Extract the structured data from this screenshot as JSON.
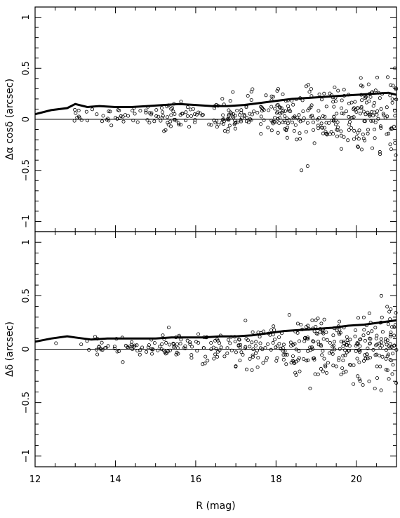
{
  "chart_data": [
    {
      "type": "scatter",
      "panel": "top",
      "xlabel": "R (mag)",
      "ylabel": "Δα cosδ  (arcsec)",
      "xlim": [
        12,
        21
      ],
      "ylim": [
        -1.1,
        1.1
      ],
      "yticks": [
        -1,
        -0.5,
        0,
        0.5,
        1
      ],
      "ytick_labels": [
        "−1",
        "−0.5",
        "0",
        "0.5",
        "1"
      ],
      "zero_line": 0,
      "rms_curve": {
        "x": [
          12.0,
          12.4,
          12.8,
          13.0,
          13.3,
          13.6,
          14.0,
          14.4,
          14.8,
          15.2,
          15.6,
          16.0,
          16.4,
          16.8,
          17.2,
          17.6,
          18.0,
          18.4,
          18.8,
          19.2,
          19.6,
          20.0,
          20.4,
          20.8,
          21.0
        ],
        "y": [
          0.05,
          0.09,
          0.11,
          0.15,
          0.12,
          0.13,
          0.12,
          0.12,
          0.13,
          0.14,
          0.15,
          0.14,
          0.13,
          0.13,
          0.14,
          0.16,
          0.18,
          0.2,
          0.21,
          0.22,
          0.23,
          0.24,
          0.25,
          0.26,
          0.24
        ]
      }
    },
    {
      "type": "scatter",
      "panel": "bottom",
      "xlabel": "R (mag)",
      "ylabel": "Δδ  (arcsec)",
      "xlim": [
        12,
        21
      ],
      "ylim": [
        -1.1,
        1.1
      ],
      "xticks": [
        12,
        14,
        16,
        18,
        20
      ],
      "xtick_labels": [
        "12",
        "14",
        "16",
        "18",
        "20"
      ],
      "yticks": [
        -1,
        -0.5,
        0,
        0.5,
        1
      ],
      "ytick_labels": [
        "−1",
        "−0.5",
        "0",
        "0.5",
        "1"
      ],
      "zero_line": 0,
      "rms_curve": {
        "x": [
          12.0,
          12.4,
          12.8,
          13.0,
          13.4,
          13.8,
          14.2,
          14.6,
          15.0,
          15.4,
          15.8,
          16.2,
          16.6,
          17.0,
          17.4,
          17.8,
          18.2,
          18.6,
          19.0,
          19.4,
          19.8,
          20.2,
          20.6,
          21.0
        ],
        "y": [
          0.07,
          0.1,
          0.12,
          0.11,
          0.09,
          0.1,
          0.1,
          0.1,
          0.1,
          0.11,
          0.11,
          0.11,
          0.12,
          0.12,
          0.13,
          0.15,
          0.17,
          0.18,
          0.19,
          0.2,
          0.22,
          0.23,
          0.25,
          0.27
        ]
      }
    }
  ]
}
